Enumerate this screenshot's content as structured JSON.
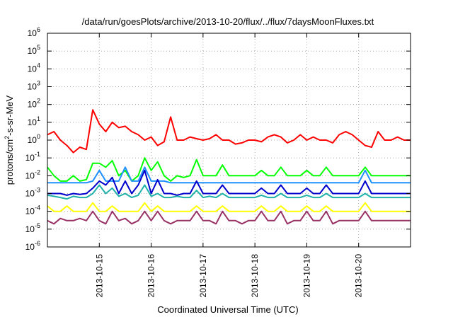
{
  "chart_data": {
    "type": "line",
    "title": "/data/run/goesPlots/archive/2013-10-20/flux/../flux/7daysMoonFluxes.txt",
    "xlabel": "Coordinated Universal Time (UTC)",
    "ylabel": "protons/cm2-s-sr-MeV",
    "ylabel_base": "protons/cm",
    "ylabel_sup": "2",
    "ylabel_rest": "-s-sr-MeV",
    "y_scale": "log",
    "ylim": [
      1e-06,
      1000000.0
    ],
    "y_ticks": [
      {
        "value": 1e-06,
        "base": "10",
        "exp": "-6"
      },
      {
        "value": 1e-05,
        "base": "10",
        "exp": "-5"
      },
      {
        "value": 0.0001,
        "base": "10",
        "exp": "-4"
      },
      {
        "value": 0.001,
        "base": "10",
        "exp": "-3"
      },
      {
        "value": 0.01,
        "base": "10",
        "exp": "-2"
      },
      {
        "value": 0.1,
        "base": "10",
        "exp": "-1"
      },
      {
        "value": 1,
        "base": "10",
        "exp": "0"
      },
      {
        "value": 10.0,
        "base": "10",
        "exp": "1"
      },
      {
        "value": 100.0,
        "base": "10",
        "exp": "2"
      },
      {
        "value": 1000.0,
        "base": "10",
        "exp": "3"
      },
      {
        "value": 10000.0,
        "base": "10",
        "exp": "4"
      },
      {
        "value": 100000.0,
        "base": "10",
        "exp": "5"
      },
      {
        "value": 1000000.0,
        "base": "10",
        "exp": "6"
      }
    ],
    "xlim": [
      "2013-10-14 00:00",
      "2013-10-21 00:00"
    ],
    "x_ticks": [
      {
        "date": "2013-10-15 00:00",
        "label": "2013-10-15"
      },
      {
        "date": "2013-10-16 00:00",
        "label": "2013-10-16"
      },
      {
        "date": "2013-10-17 00:00",
        "label": "2013-10-17"
      },
      {
        "date": "2013-10-18 00:00",
        "label": "2013-10-18"
      },
      {
        "date": "2013-10-19 00:00",
        "label": "2013-10-19"
      },
      {
        "date": "2013-10-20 00:00",
        "label": "2013-10-20"
      }
    ],
    "grid": true,
    "grid_style": "dotted",
    "x": [
      "2013-10-14 00:00",
      "2013-10-14 03:00",
      "2013-10-14 06:00",
      "2013-10-14 09:00",
      "2013-10-14 12:00",
      "2013-10-14 15:00",
      "2013-10-14 18:00",
      "2013-10-14 21:00",
      "2013-10-15 00:00",
      "2013-10-15 03:00",
      "2013-10-15 06:00",
      "2013-10-15 09:00",
      "2013-10-15 12:00",
      "2013-10-15 15:00",
      "2013-10-15 18:00",
      "2013-10-15 21:00",
      "2013-10-16 00:00",
      "2013-10-16 03:00",
      "2013-10-16 06:00",
      "2013-10-16 09:00",
      "2013-10-16 12:00",
      "2013-10-16 15:00",
      "2013-10-16 18:00",
      "2013-10-16 21:00",
      "2013-10-17 00:00",
      "2013-10-17 03:00",
      "2013-10-17 06:00",
      "2013-10-17 09:00",
      "2013-10-17 12:00",
      "2013-10-17 15:00",
      "2013-10-17 18:00",
      "2013-10-17 21:00",
      "2013-10-18 00:00",
      "2013-10-18 03:00",
      "2013-10-18 06:00",
      "2013-10-18 09:00",
      "2013-10-18 12:00",
      "2013-10-18 15:00",
      "2013-10-18 18:00",
      "2013-10-18 21:00",
      "2013-10-19 00:00",
      "2013-10-19 03:00",
      "2013-10-19 06:00",
      "2013-10-19 09:00",
      "2013-10-19 12:00",
      "2013-10-19 15:00",
      "2013-10-19 18:00",
      "2013-10-19 21:00",
      "2013-10-20 00:00",
      "2013-10-20 03:00",
      "2013-10-20 06:00",
      "2013-10-20 09:00",
      "2013-10-20 12:00",
      "2013-10-20 15:00",
      "2013-10-20 18:00",
      "2013-10-20 21:00",
      "2013-10-21 00:00"
    ],
    "series": [
      {
        "color": "#ff0000",
        "values": [
          2,
          3,
          1,
          0.5,
          0.2,
          0.4,
          0.3,
          50,
          8,
          3,
          10,
          5,
          6,
          3,
          2,
          1,
          1.5,
          0.5,
          0.8,
          20,
          1,
          1,
          1.5,
          1.2,
          1,
          1.2,
          2,
          1,
          1,
          0.6,
          0.7,
          1,
          1,
          0.8,
          1.5,
          2,
          1.5,
          0.7,
          1,
          2,
          1,
          1.5,
          1,
          1,
          0.7,
          2,
          3,
          2,
          1,
          0.5,
          0.4,
          3,
          1,
          1,
          1.5,
          1,
          1
        ]
      },
      {
        "color": "#00ff00",
        "values": [
          0.03,
          0.01,
          0.005,
          0.005,
          0.01,
          0.005,
          0.006,
          0.05,
          0.05,
          0.03,
          0.07,
          0.01,
          0.02,
          0.005,
          0.01,
          0.1,
          0.02,
          0.06,
          0.01,
          0.005,
          0.01,
          0.008,
          0.01,
          0.08,
          0.01,
          0.01,
          0.01,
          0.04,
          0.01,
          0.01,
          0.01,
          0.01,
          0.01,
          0.02,
          0.01,
          0.01,
          0.03,
          0.01,
          0.01,
          0.01,
          0.02,
          0.01,
          0.01,
          0.03,
          0.01,
          0.01,
          0.01,
          0.01,
          0.01,
          0.03,
          0.01,
          0.01,
          0.01,
          0.01,
          0.01,
          0.01,
          0.01
        ]
      },
      {
        "color": "#1e90ff",
        "values": [
          0.004,
          0.004,
          0.004,
          0.004,
          0.004,
          0.004,
          0.004,
          0.005,
          0.02,
          0.005,
          0.005,
          0.005,
          0.03,
          0.005,
          0.005,
          0.03,
          0.005,
          0.005,
          0.005,
          0.004,
          0.004,
          0.004,
          0.004,
          0.004,
          0.004,
          0.004,
          0.004,
          0.004,
          0.004,
          0.004,
          0.004,
          0.004,
          0.004,
          0.004,
          0.004,
          0.004,
          0.004,
          0.004,
          0.004,
          0.004,
          0.004,
          0.004,
          0.004,
          0.004,
          0.004,
          0.004,
          0.004,
          0.004,
          0.004,
          0.02,
          0.004,
          0.004,
          0.004,
          0.004,
          0.004,
          0.004,
          0.004
        ]
      },
      {
        "color": "#0000cd",
        "values": [
          0.001,
          0.001,
          0.001,
          0.0008,
          0.001,
          0.0009,
          0.001,
          0.002,
          0.005,
          0.003,
          0.008,
          0.001,
          0.005,
          0.001,
          0.003,
          0.02,
          0.001,
          0.006,
          0.001,
          0.001,
          0.0008,
          0.001,
          0.001,
          0.005,
          0.001,
          0.001,
          0.001,
          0.003,
          0.001,
          0.001,
          0.001,
          0.001,
          0.001,
          0.002,
          0.001,
          0.001,
          0.003,
          0.001,
          0.001,
          0.001,
          0.002,
          0.001,
          0.001,
          0.003,
          0.001,
          0.001,
          0.001,
          0.001,
          0.001,
          0.005,
          0.001,
          0.001,
          0.001,
          0.001,
          0.001,
          0.001,
          0.001
        ]
      },
      {
        "color": "#20b2aa",
        "values": [
          0.0008,
          0.0007,
          0.0006,
          0.0005,
          0.0007,
          0.0006,
          0.0006,
          0.001,
          0.003,
          0.001,
          0.002,
          0.0007,
          0.001,
          0.0006,
          0.0008,
          0.003,
          0.0007,
          0.001,
          0.0006,
          0.0006,
          0.0007,
          0.0006,
          0.0006,
          0.0015,
          0.0006,
          0.0007,
          0.0006,
          0.001,
          0.0006,
          0.0006,
          0.0006,
          0.0006,
          0.0006,
          0.0008,
          0.0006,
          0.0006,
          0.001,
          0.0006,
          0.0006,
          0.0006,
          0.0008,
          0.0006,
          0.0006,
          0.001,
          0.0006,
          0.0006,
          0.0006,
          0.0006,
          0.0006,
          0.001,
          0.0006,
          0.0006,
          0.0006,
          0.0006,
          0.0006,
          0.0006,
          0.0006
        ]
      },
      {
        "color": "#ffff00",
        "values": [
          0.0002,
          0.0001,
          0.0001,
          0.0002,
          0.0001,
          0.0001,
          0.0001,
          0.0003,
          0.0001,
          0.0001,
          0.0002,
          0.0001,
          0.0001,
          0.0001,
          0.0001,
          0.0003,
          0.0001,
          0.0002,
          0.0001,
          0.0001,
          0.0001,
          0.0001,
          0.0001,
          0.0002,
          0.0001,
          0.0001,
          0.0001,
          0.0002,
          0.0001,
          0.0001,
          0.0001,
          0.0001,
          0.0001,
          0.0002,
          0.0001,
          0.0001,
          0.0002,
          0.0001,
          0.0001,
          0.0001,
          0.0002,
          0.0001,
          0.0001,
          0.0002,
          0.0001,
          0.0001,
          0.0001,
          0.0001,
          0.0001,
          0.0003,
          0.0001,
          0.0001,
          0.0001,
          0.0001,
          0.0001,
          0.0001,
          0.0001
        ]
      },
      {
        "color": "#993366",
        "values": [
          3e-05,
          2e-05,
          4e-05,
          3e-05,
          3e-05,
          4e-05,
          3e-05,
          0.0001,
          3e-05,
          2e-05,
          0.0001,
          3e-05,
          4e-05,
          2e-05,
          3e-05,
          0.0001,
          3e-05,
          0.0001,
          3e-05,
          2e-05,
          3e-05,
          3e-05,
          3e-05,
          0.0001,
          3e-05,
          3e-05,
          2e-05,
          0.0001,
          3e-05,
          3e-05,
          2e-05,
          3e-05,
          3e-05,
          0.0001,
          3e-05,
          3e-05,
          0.0001,
          2e-05,
          3e-05,
          3e-05,
          0.0001,
          3e-05,
          3e-05,
          0.0001,
          2e-05,
          3e-05,
          3e-05,
          3e-05,
          3e-05,
          0.0001,
          3e-05,
          3e-05,
          3e-05,
          3e-05,
          3e-05,
          3e-05,
          3e-05
        ]
      }
    ]
  }
}
